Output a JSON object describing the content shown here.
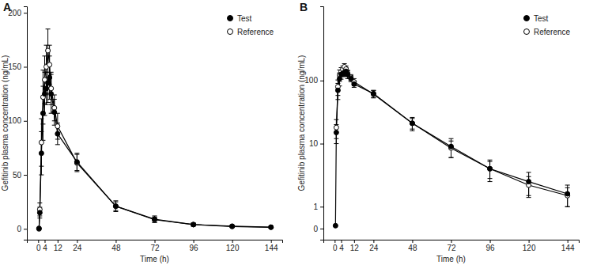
{
  "chart_data": [
    {
      "type": "line",
      "title": "A",
      "x_label": "Time (h)",
      "y_label": "Gefitinib plasma concentration (ng/mL)",
      "x": [
        0.5,
        1,
        2,
        3,
        4,
        5,
        6,
        7,
        8,
        10,
        12,
        24,
        48,
        72,
        96,
        120,
        144
      ],
      "series": [
        {
          "name": "Reference",
          "color": "#000000",
          "marker": "open-circle",
          "line_style": "solid",
          "values": [
            0,
            18,
            80,
            122,
            138,
            150,
            165,
            152,
            130,
            112,
            95,
            61,
            21,
            8.5,
            4,
            2.2,
            1.5
          ],
          "errors": [
            0,
            6,
            22,
            25,
            22,
            20,
            20,
            18,
            15,
            12,
            12,
            8,
            4,
            2.5,
            1.2,
            0.8,
            0.5
          ]
        },
        {
          "name": "Test",
          "color": "#000000",
          "marker": "circle",
          "line_style": "solid",
          "values": [
            0.5,
            15,
            70,
            107,
            125,
            130,
            135,
            140,
            125,
            108,
            88,
            62,
            21,
            9,
            4,
            2.5,
            1.6
          ],
          "errors": [
            0,
            5,
            20,
            25,
            20,
            15,
            18,
            20,
            18,
            12,
            10,
            8,
            5,
            3,
            1.5,
            1,
            0.6
          ]
        }
      ],
      "xlim": [
        -7,
        151
      ],
      "xticks": [
        0,
        4,
        12,
        24,
        48,
        72,
        96,
        120,
        144
      ],
      "ylim": [
        -10,
        206
      ],
      "yticks": [
        0,
        50,
        100,
        150,
        200
      ],
      "grid": false,
      "legend": "top-right"
    },
    {
      "type": "line",
      "title": "B",
      "x_label": "Time (h)",
      "y_label": "Gefitinib plasma concentration (ng/mL)",
      "x": [
        0.5,
        1,
        2,
        3,
        4,
        5,
        6,
        7,
        8,
        10,
        12,
        24,
        48,
        72,
        96,
        120,
        144
      ],
      "series": [
        {
          "name": "Reference",
          "color": "#000000",
          "marker": "open-circle",
          "line_style": "solid",
          "values": [
            null,
            18,
            80,
            122,
            138,
            150,
            165,
            152,
            130,
            112,
            95,
            61,
            21,
            8.5,
            4,
            2.2,
            1.5
          ],
          "errors": [
            null,
            6,
            22,
            25,
            22,
            20,
            20,
            18,
            15,
            12,
            12,
            8,
            4,
            2.5,
            1.2,
            0.8,
            0.5
          ]
        },
        {
          "name": "Test",
          "color": "#000000",
          "marker": "circle",
          "line_style": "solid",
          "values": [
            0.5,
            15,
            70,
            107,
            125,
            130,
            135,
            140,
            125,
            108,
            88,
            62,
            21,
            9,
            4,
            2.5,
            1.6
          ],
          "errors": [
            0,
            5,
            20,
            25,
            20,
            15,
            18,
            20,
            18,
            12,
            10,
            8,
            5,
            3,
            1.5,
            1,
            0.6
          ]
        }
      ],
      "xlim": [
        -7,
        151
      ],
      "xticks": [
        0,
        4,
        12,
        24,
        48,
        72,
        96,
        120,
        144
      ],
      "ylim": [
        0.3,
        1500
      ],
      "yticks": [
        {
          "value": 0.45,
          "label": "0"
        },
        1,
        10,
        100
      ],
      "log": "y",
      "grid": false,
      "legend": "top-right"
    }
  ]
}
